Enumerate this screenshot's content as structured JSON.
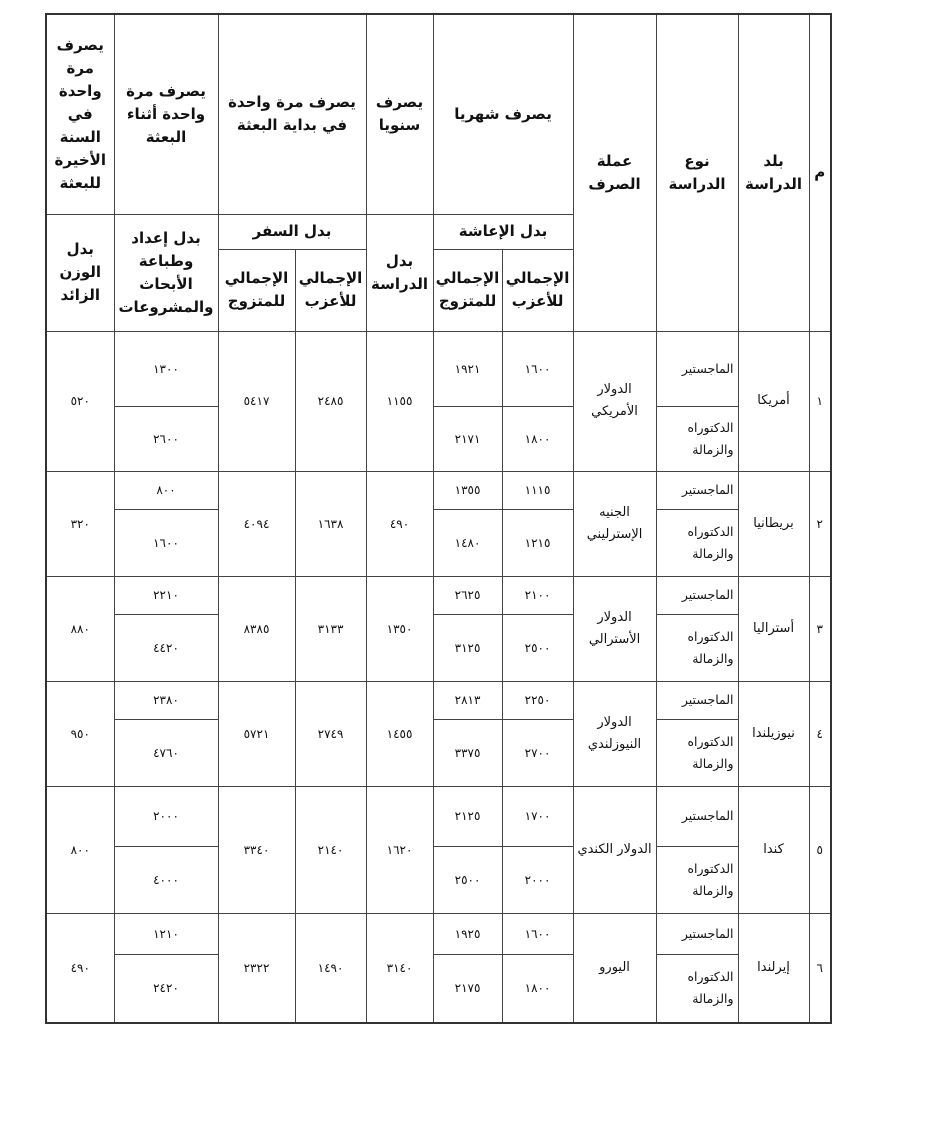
{
  "headers": {
    "index": "م",
    "country": "بلد الدراسة",
    "study_type": "نوع الدراسة",
    "currency": "عملة الصرف",
    "monthly": "يصرف شهريا",
    "yearly": "يصرف سنويا",
    "once_start": "يصرف مرة واحدة في بداية البعثة",
    "once_during": "يصرف مرة واحدة أثناء البعثة",
    "once_last_year": "يصرف مرة واحدة في السنة الأخيرة للبعثة",
    "living_allowance": "بدل الإعاشة",
    "study_allowance": "بدل الدراسة",
    "travel_allowance": "بدل السفر",
    "research_allowance": "بدل إعداد وطباعة الأبحاث والمشروعات",
    "excess_weight_allowance": "بدل الوزن الزائد",
    "total_single": "الإجمالي للأعزب",
    "total_married": "الإجمالي للمتزوج"
  },
  "degrees": [
    "الماجستير",
    "الدكتوراه والزمالة"
  ],
  "rows": [
    {
      "index": "١",
      "country": "أمريكا",
      "currency": "الدولار الأمريكي",
      "living_single": [
        "١٦٠٠",
        "١٨٠٠"
      ],
      "living_married": [
        "١٩٢١",
        "٢١٧١"
      ],
      "study": "١١٥٥",
      "travel_single": "٢٤٨٥",
      "travel_married": "٥٤١٧",
      "research": [
        "١٣٠٠",
        "٢٦٠٠"
      ],
      "weight": "٥٢٠"
    },
    {
      "index": "٢",
      "country": "بريطانيا",
      "currency": "الجنيه الإسترليني",
      "living_single": [
        "١١١٥",
        "١٢١٥"
      ],
      "living_married": [
        "١٣٥٥",
        "١٤٨٠"
      ],
      "study": "٤٩٠",
      "travel_single": "١٦٣٨",
      "travel_married": "٤٠٩٤",
      "research": [
        "٨٠٠",
        "١٦٠٠"
      ],
      "weight": "٣٢٠"
    },
    {
      "index": "٣",
      "country": "أستراليا",
      "currency": "الدولار الأسترالي",
      "living_single": [
        "٢١٠٠",
        "٢٥٠٠"
      ],
      "living_married": [
        "٢٦٢٥",
        "٣١٢٥"
      ],
      "study": "١٣٥٠",
      "travel_single": "٣١٣٣",
      "travel_married": "٨٣٨٥",
      "research": [
        "٢٢١٠",
        "٤٤٢٠"
      ],
      "weight": "٨٨٠"
    },
    {
      "index": "٤",
      "country": "نيوزيلندا",
      "currency": "الدولار النيوزلندي",
      "living_single": [
        "٢٢٥٠",
        "٢٧٠٠"
      ],
      "living_married": [
        "٢٨١٣",
        "٣٣٧٥"
      ],
      "study": "١٤٥٥",
      "travel_single": "٢٧٤٩",
      "travel_married": "٥٧٢١",
      "research": [
        "٢٣٨٠",
        "٤٧٦٠"
      ],
      "weight": "٩٥٠"
    },
    {
      "index": "٥",
      "country": "كندا",
      "currency": "الدولار الكندي",
      "living_single": [
        "١٧٠٠",
        "٢٠٠٠"
      ],
      "living_married": [
        "٢١٢٥",
        "٢٥٠٠"
      ],
      "study": "١٦٢٠",
      "travel_single": "٢١٤٠",
      "travel_married": "٣٣٤٠",
      "research": [
        "٢٠٠٠",
        "٤٠٠٠"
      ],
      "weight": "٨٠٠"
    },
    {
      "index": "٦",
      "country": "إيرلندا",
      "currency": "اليورو",
      "living_single": [
        "١٦٠٠",
        "١٨٠٠"
      ],
      "living_married": [
        "١٩٢٥",
        "٢١٧٥"
      ],
      "study": "٣١٤٠",
      "travel_single": "١٤٩٠",
      "travel_married": "٢٣٢٢",
      "research": [
        "١٢١٠",
        "٢٤٢٠"
      ],
      "weight": "٤٩٠"
    }
  ]
}
